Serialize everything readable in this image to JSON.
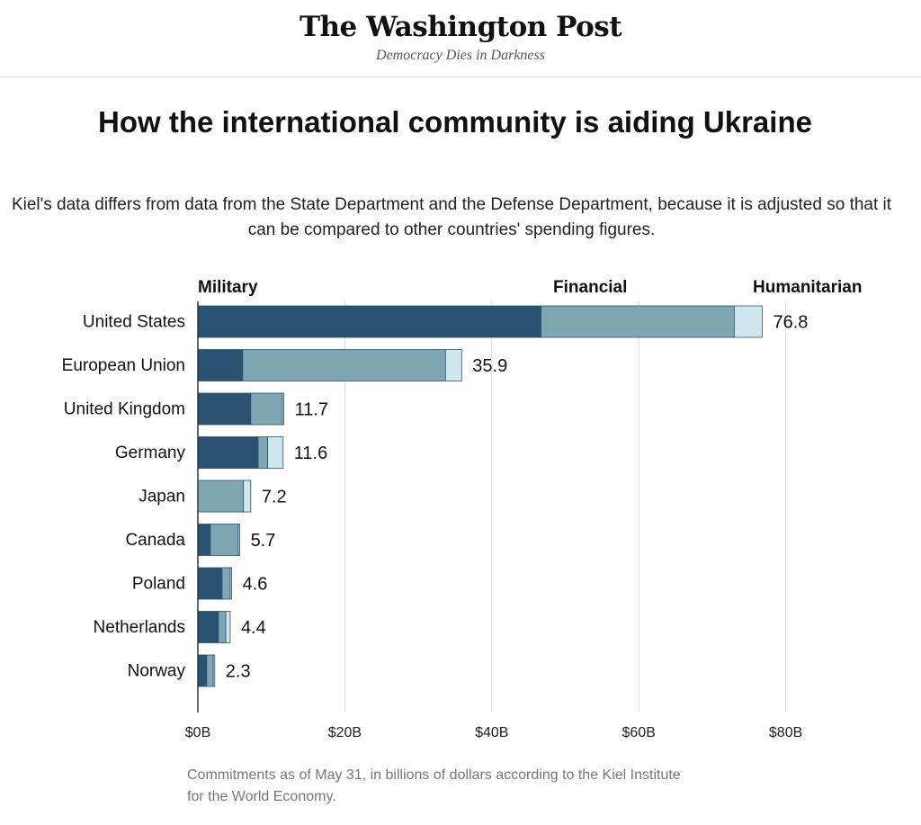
{
  "masthead": {
    "logo": "The Washington Post",
    "tagline": "Democracy Dies in Darkness"
  },
  "colors": {
    "military": "#2b5270",
    "financial": "#80a6b4",
    "humanitarian": "#cfe6ee",
    "gridline": "#d9d9d9",
    "axis": "#333333"
  },
  "chart_data": {
    "type": "bar",
    "orientation": "horizontal",
    "stacked": true,
    "title": "How the international community is aiding Ukraine",
    "subtitle": "Kiel's data differs from data from the State Department and the Defense Department, because it is adjusted so that it can be compared to other countries' spending figures.",
    "categories": [
      "United States",
      "European Union",
      "United Kingdom",
      "Germany",
      "Japan",
      "Canada",
      "Poland",
      "Netherlands",
      "Norway"
    ],
    "series": [
      {
        "name": "Military",
        "values": [
          46.7,
          6.1,
          7.2,
          8.2,
          0,
          1.7,
          3.3,
          2.8,
          1.2
        ]
      },
      {
        "name": "Financial",
        "values": [
          26.3,
          27.6,
          4.3,
          1.3,
          6.2,
          3.8,
          1.1,
          1.0,
          0.9
        ]
      },
      {
        "name": "Humanitarian",
        "values": [
          3.8,
          2.2,
          0.2,
          2.1,
          1.0,
          0.2,
          0.2,
          0.6,
          0.2
        ]
      }
    ],
    "totals": [
      "76.8",
      "35.9",
      "11.7",
      "11.6",
      "7.2",
      "5.7",
      "4.6",
      "4.4",
      "2.3"
    ],
    "xlim": [
      0,
      80
    ],
    "xticks": [
      0,
      20,
      40,
      60,
      80
    ],
    "xtick_labels": [
      "$0B",
      "$20B",
      "$40B",
      "$60B",
      "$80B"
    ],
    "grid": true,
    "legend": "top, above first bar"
  },
  "note": "Commitments as of May 31, in billions of dollars according to the Kiel Institute for the World Economy."
}
